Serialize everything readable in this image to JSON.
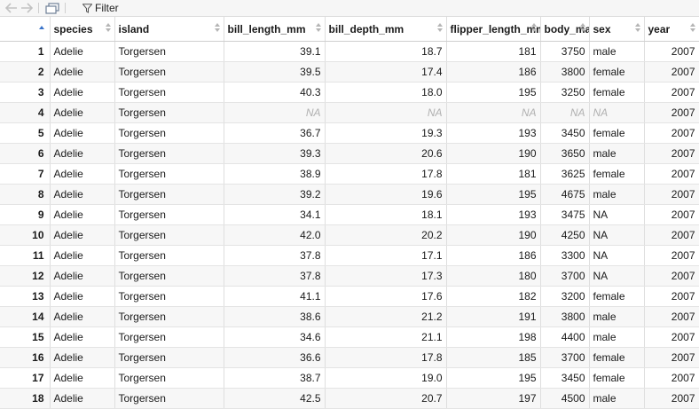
{
  "toolbar": {
    "back_icon": "back-arrow-icon",
    "forward_icon": "forward-arrow-icon",
    "popout_icon": "popout-window-icon",
    "filter_icon": "funnel-icon",
    "filter_label": "Filter"
  },
  "table": {
    "columns": [
      "species",
      "island",
      "bill_length_mm",
      "bill_depth_mm",
      "flipper_length_mm",
      "body_mass_g",
      "sex",
      "year"
    ],
    "rows": [
      [
        "1",
        "Adelie",
        "Torgersen",
        "39.1",
        "18.7",
        "181",
        "3750",
        "male",
        "2007"
      ],
      [
        "2",
        "Adelie",
        "Torgersen",
        "39.5",
        "17.4",
        "186",
        "3800",
        "female",
        "2007"
      ],
      [
        "3",
        "Adelie",
        "Torgersen",
        "40.3",
        "18.0",
        "195",
        "3250",
        "female",
        "2007"
      ],
      [
        "4",
        "Adelie",
        "Torgersen",
        "NA",
        "NA",
        "NA",
        "NA",
        "NA",
        "2007"
      ],
      [
        "5",
        "Adelie",
        "Torgersen",
        "36.7",
        "19.3",
        "193",
        "3450",
        "female",
        "2007"
      ],
      [
        "6",
        "Adelie",
        "Torgersen",
        "39.3",
        "20.6",
        "190",
        "3650",
        "male",
        "2007"
      ],
      [
        "7",
        "Adelie",
        "Torgersen",
        "38.9",
        "17.8",
        "181",
        "3625",
        "female",
        "2007"
      ],
      [
        "8",
        "Adelie",
        "Torgersen",
        "39.2",
        "19.6",
        "195",
        "4675",
        "male",
        "2007"
      ],
      [
        "9",
        "Adelie",
        "Torgersen",
        "34.1",
        "18.1",
        "193",
        "3475",
        "NA",
        "2007"
      ],
      [
        "10",
        "Adelie",
        "Torgersen",
        "42.0",
        "20.2",
        "190",
        "4250",
        "NA",
        "2007"
      ],
      [
        "11",
        "Adelie",
        "Torgersen",
        "37.8",
        "17.1",
        "186",
        "3300",
        "NA",
        "2007"
      ],
      [
        "12",
        "Adelie",
        "Torgersen",
        "37.8",
        "17.3",
        "180",
        "3700",
        "NA",
        "2007"
      ],
      [
        "13",
        "Adelie",
        "Torgersen",
        "41.1",
        "17.6",
        "182",
        "3200",
        "female",
        "2007"
      ],
      [
        "14",
        "Adelie",
        "Torgersen",
        "38.6",
        "21.2",
        "191",
        "3800",
        "male",
        "2007"
      ],
      [
        "15",
        "Adelie",
        "Torgersen",
        "34.6",
        "21.1",
        "198",
        "4400",
        "male",
        "2007"
      ],
      [
        "16",
        "Adelie",
        "Torgersen",
        "36.6",
        "17.8",
        "185",
        "3700",
        "female",
        "2007"
      ],
      [
        "17",
        "Adelie",
        "Torgersen",
        "38.7",
        "19.0",
        "195",
        "3450",
        "female",
        "2007"
      ],
      [
        "18",
        "Adelie",
        "Torgersen",
        "42.5",
        "20.7",
        "197",
        "4500",
        "male",
        "2007"
      ]
    ],
    "na_italic_row": "4",
    "accent_color": "#3a73c9"
  }
}
